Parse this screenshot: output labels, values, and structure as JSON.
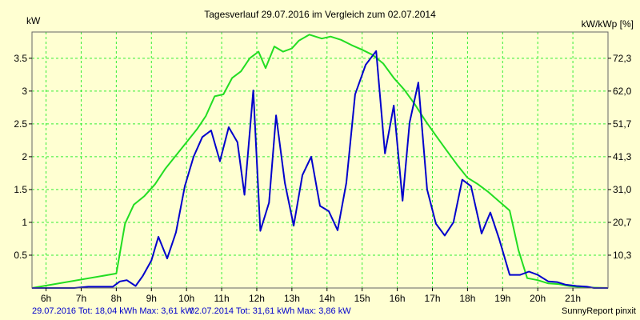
{
  "chart_data": {
    "type": "line",
    "title": "Tagesverlauf 29.07.2016 im Vergleich zum 02.07.2014",
    "ylabel_left": "kW",
    "ylabel_right": "kW/kWp [%]",
    "x_range": [
      5.6,
      22.0
    ],
    "ylim": [
      0,
      3.9
    ],
    "x_ticks": [
      {
        "x": 6,
        "label": "6h"
      },
      {
        "x": 7,
        "label": "7h"
      },
      {
        "x": 8,
        "label": "8h"
      },
      {
        "x": 9,
        "label": "9h"
      },
      {
        "x": 10,
        "label": "10h"
      },
      {
        "x": 11,
        "label": "11h"
      },
      {
        "x": 12,
        "label": "12h"
      },
      {
        "x": 13,
        "label": "13h"
      },
      {
        "x": 14,
        "label": "14h"
      },
      {
        "x": 15,
        "label": "15h"
      },
      {
        "x": 16,
        "label": "16h"
      },
      {
        "x": 17,
        "label": "17h"
      },
      {
        "x": 18,
        "label": "18h"
      },
      {
        "x": 19,
        "label": "19h"
      },
      {
        "x": 20,
        "label": "20h"
      },
      {
        "x": 21,
        "label": "21h"
      }
    ],
    "y_ticks_left": [
      {
        "y": 0.5,
        "label": "0.5"
      },
      {
        "y": 1.0,
        "label": "1"
      },
      {
        "y": 1.5,
        "label": "1.5"
      },
      {
        "y": 2.0,
        "label": "2"
      },
      {
        "y": 2.5,
        "label": "2.5"
      },
      {
        "y": 3.0,
        "label": "3"
      },
      {
        "y": 3.5,
        "label": "3.5"
      }
    ],
    "y_ticks_right": [
      {
        "y": 0.5,
        "label": "10,3"
      },
      {
        "y": 1.0,
        "label": "20,7"
      },
      {
        "y": 1.5,
        "label": "31,0"
      },
      {
        "y": 2.0,
        "label": "41,3"
      },
      {
        "y": 2.5,
        "label": "51,7"
      },
      {
        "y": 3.0,
        "label": "62,0"
      },
      {
        "y": 3.5,
        "label": "72,3"
      }
    ],
    "grid": true,
    "series": [
      {
        "name": "29.07.2016",
        "color": "#0000cc",
        "points": [
          [
            5.6,
            0.0
          ],
          [
            6.8,
            0.0
          ],
          [
            7.2,
            0.02
          ],
          [
            7.9,
            0.02
          ],
          [
            8.1,
            0.1
          ],
          [
            8.3,
            0.12
          ],
          [
            8.55,
            0.03
          ],
          [
            8.75,
            0.18
          ],
          [
            9.0,
            0.42
          ],
          [
            9.2,
            0.78
          ],
          [
            9.45,
            0.45
          ],
          [
            9.7,
            0.85
          ],
          [
            9.95,
            1.55
          ],
          [
            10.2,
            2.0
          ],
          [
            10.45,
            2.3
          ],
          [
            10.7,
            2.4
          ],
          [
            10.95,
            1.93
          ],
          [
            11.2,
            2.45
          ],
          [
            11.45,
            2.22
          ],
          [
            11.65,
            1.42
          ],
          [
            11.9,
            3.01
          ],
          [
            12.1,
            0.87
          ],
          [
            12.35,
            1.3
          ],
          [
            12.55,
            2.63
          ],
          [
            12.8,
            1.6
          ],
          [
            13.05,
            0.95
          ],
          [
            13.3,
            1.72
          ],
          [
            13.55,
            2.0
          ],
          [
            13.8,
            1.25
          ],
          [
            14.05,
            1.17
          ],
          [
            14.3,
            0.88
          ],
          [
            14.55,
            1.6
          ],
          [
            14.8,
            2.95
          ],
          [
            15.1,
            3.4
          ],
          [
            15.4,
            3.61
          ],
          [
            15.65,
            2.05
          ],
          [
            15.9,
            2.78
          ],
          [
            16.15,
            1.33
          ],
          [
            16.35,
            2.52
          ],
          [
            16.6,
            3.13
          ],
          [
            16.85,
            1.5
          ],
          [
            17.1,
            0.98
          ],
          [
            17.35,
            0.8
          ],
          [
            17.6,
            1.0
          ],
          [
            17.85,
            1.65
          ],
          [
            18.1,
            1.55
          ],
          [
            18.4,
            0.83
          ],
          [
            18.65,
            1.15
          ],
          [
            18.9,
            0.75
          ],
          [
            19.2,
            0.2
          ],
          [
            19.5,
            0.2
          ],
          [
            19.75,
            0.25
          ],
          [
            20.0,
            0.2
          ],
          [
            20.3,
            0.1
          ],
          [
            20.55,
            0.09
          ],
          [
            20.8,
            0.05
          ],
          [
            21.1,
            0.03
          ],
          [
            21.4,
            0.02
          ],
          [
            21.6,
            0.0
          ],
          [
            22.0,
            0.0
          ]
        ]
      },
      {
        "name": "02.07.2014",
        "color": "#22dd22",
        "points": [
          [
            5.6,
            0.0
          ],
          [
            8.0,
            0.22
          ],
          [
            8.25,
            0.98
          ],
          [
            8.5,
            1.27
          ],
          [
            8.8,
            1.4
          ],
          [
            9.1,
            1.58
          ],
          [
            9.4,
            1.82
          ],
          [
            9.7,
            2.02
          ],
          [
            10.0,
            2.22
          ],
          [
            10.3,
            2.42
          ],
          [
            10.55,
            2.62
          ],
          [
            10.8,
            2.92
          ],
          [
            11.05,
            2.95
          ],
          [
            11.3,
            3.2
          ],
          [
            11.55,
            3.3
          ],
          [
            11.8,
            3.5
          ],
          [
            12.05,
            3.6
          ],
          [
            12.25,
            3.35
          ],
          [
            12.5,
            3.68
          ],
          [
            12.75,
            3.6
          ],
          [
            13.0,
            3.65
          ],
          [
            13.2,
            3.77
          ],
          [
            13.5,
            3.86
          ],
          [
            13.85,
            3.8
          ],
          [
            14.1,
            3.83
          ],
          [
            14.4,
            3.78
          ],
          [
            14.7,
            3.7
          ],
          [
            15.0,
            3.63
          ],
          [
            15.3,
            3.55
          ],
          [
            15.6,
            3.42
          ],
          [
            15.9,
            3.2
          ],
          [
            16.2,
            3.02
          ],
          [
            16.5,
            2.8
          ],
          [
            16.8,
            2.55
          ],
          [
            17.1,
            2.32
          ],
          [
            17.4,
            2.1
          ],
          [
            17.7,
            1.88
          ],
          [
            18.0,
            1.68
          ],
          [
            18.3,
            1.58
          ],
          [
            18.6,
            1.46
          ],
          [
            18.9,
            1.32
          ],
          [
            19.2,
            1.18
          ],
          [
            19.45,
            0.58
          ],
          [
            19.7,
            0.15
          ],
          [
            20.0,
            0.12
          ],
          [
            20.3,
            0.07
          ],
          [
            20.6,
            0.06
          ],
          [
            20.9,
            0.03
          ],
          [
            21.3,
            0.01
          ],
          [
            22.0,
            0.0
          ]
        ]
      }
    ]
  },
  "footer": {
    "series_a_label": "29.07.2016 Tot: 18,04 kWh Max: 3,61 kW",
    "series_b_label": "02.07.2014 Tot: 31,61 kWh Max: 3,86 kW",
    "credit": "SunnyReport pinxit"
  }
}
